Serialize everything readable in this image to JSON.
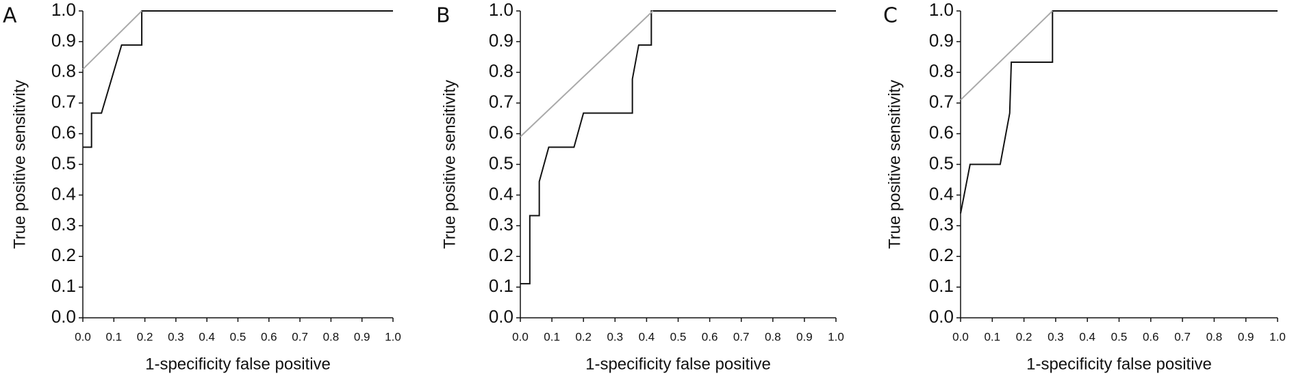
{
  "chart_data": [
    {
      "type": "line",
      "panel_label": "A",
      "xlabel": "1-specificity false positive",
      "ylabel": "True positive sensitivity",
      "xlim": [
        0,
        1
      ],
      "ylim": [
        0,
        1
      ],
      "xticks": [
        {
          "value": 0,
          "label": "0.0"
        },
        0.1,
        0.2,
        0.3,
        0.4,
        0.5,
        0.6,
        0.7,
        0.8,
        0.9,
        {
          "value": 1,
          "label": "1.0"
        }
      ],
      "yticks": [
        {
          "value": 0,
          "label": "0.0"
        },
        0.1,
        0.2,
        0.3,
        0.4,
        0.5,
        0.6,
        0.7,
        0.8,
        0.9,
        {
          "value": 1,
          "label": "1.0"
        }
      ],
      "series": [
        {
          "color": "#111111",
          "x": [
            0,
            0.028,
            0.028,
            0.06,
            0.125,
            0.19,
            0.19,
            1.0
          ],
          "values": [
            0.556,
            0.556,
            0.667,
            0.667,
            0.889,
            0.889,
            1.0,
            1.0
          ]
        },
        {
          "color": "#aaaaaa",
          "x": [
            0,
            0.19
          ],
          "values": [
            0.81,
            1.0
          ]
        }
      ]
    },
    {
      "type": "line",
      "panel_label": "B",
      "xlabel": "1-specificity false positive",
      "ylabel": "True positive sensitivity",
      "xlim": [
        0,
        1
      ],
      "ylim": [
        0,
        1
      ],
      "xticks": [
        {
          "value": 0,
          "label": "0.0"
        },
        0.1,
        0.2,
        0.3,
        0.4,
        0.5,
        0.6,
        0.7,
        0.8,
        0.9,
        {
          "value": 1,
          "label": "1.0"
        }
      ],
      "yticks": [
        {
          "value": 0,
          "label": "0.0"
        },
        0.1,
        0.2,
        0.3,
        0.4,
        0.5,
        0.6,
        0.7,
        0.8,
        0.9,
        {
          "value": 1,
          "label": "1.0"
        }
      ],
      "series": [
        {
          "color": "#111111",
          "x": [
            0,
            0.03,
            0.03,
            0.06,
            0.06,
            0.09,
            0.17,
            0.2,
            0.355,
            0.355,
            0.375,
            0.415,
            0.415,
            1.0
          ],
          "values": [
            0.111,
            0.111,
            0.333,
            0.333,
            0.444,
            0.556,
            0.556,
            0.667,
            0.667,
            0.778,
            0.889,
            0.889,
            1.0,
            1.0
          ]
        },
        {
          "color": "#aaaaaa",
          "x": [
            0,
            0.42
          ],
          "values": [
            0.59,
            1.0
          ]
        }
      ]
    },
    {
      "type": "line",
      "panel_label": "C",
      "xlabel": "1-specificity false positive",
      "ylabel": "True positive sensitivity",
      "xlim": [
        0,
        1
      ],
      "ylim": [
        0,
        1
      ],
      "xticks": [
        {
          "value": 0,
          "label": "0.0"
        },
        0.1,
        0.2,
        0.3,
        0.4,
        0.5,
        0.6,
        0.7,
        0.8,
        0.9,
        {
          "value": 1,
          "label": "1.0"
        }
      ],
      "yticks": [
        {
          "value": 0,
          "label": "0.0"
        },
        0.1,
        0.2,
        0.3,
        0.4,
        0.5,
        0.6,
        0.7,
        0.8,
        0.9,
        {
          "value": 1,
          "label": "1.0"
        }
      ],
      "series": [
        {
          "color": "#111111",
          "x": [
            0,
            0.03,
            0.125,
            0.155,
            0.16,
            0.29,
            0.29,
            1.0
          ],
          "values": [
            0.34,
            0.5,
            0.5,
            0.667,
            0.833,
            0.833,
            1.0,
            1.0
          ]
        },
        {
          "color": "#aaaaaa",
          "x": [
            0,
            0.29
          ],
          "values": [
            0.71,
            1.0
          ]
        }
      ]
    }
  ]
}
